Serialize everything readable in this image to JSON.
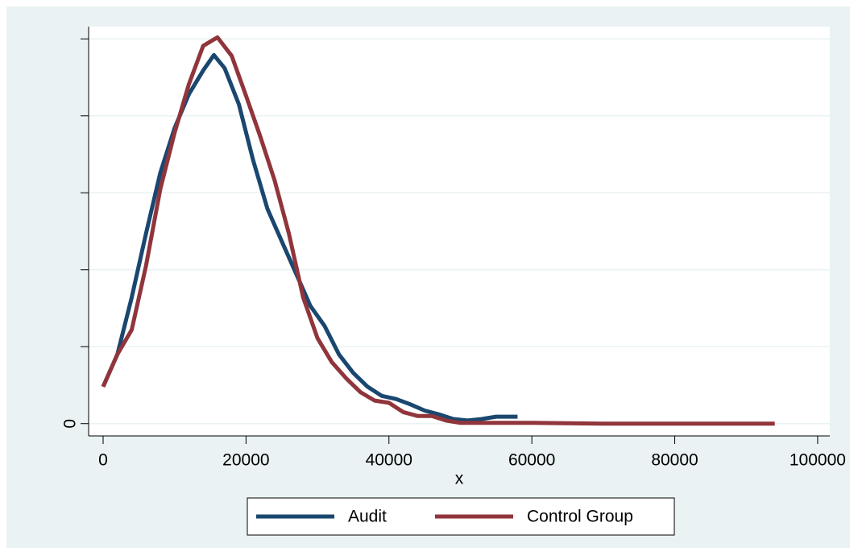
{
  "chart_data": {
    "type": "line",
    "xlabel": "x",
    "xlim": [
      -2030,
      101700
    ],
    "xticks": [
      0,
      20000,
      40000,
      60000,
      80000,
      100000
    ],
    "ylim": [
      -1.6e-06,
      5.16e-05
    ],
    "yticks": [
      0,
      {
        "value": 1e-05,
        "label": null
      },
      {
        "value": 2e-05,
        "label": null
      },
      {
        "value": 3e-05,
        "label": null
      },
      {
        "value": 4e-05,
        "label": null
      },
      {
        "value": 5e-05,
        "label": null
      }
    ],
    "grid": true,
    "legend": "bottom",
    "series": [
      {
        "name": "Audit",
        "color": "#1a476f",
        "x": [
          0,
          2000,
          4000,
          6000,
          8000,
          10000,
          12000,
          14000,
          15500,
          17000,
          19000,
          21000,
          23000,
          25000,
          27000,
          29000,
          31000,
          33000,
          35000,
          37000,
          39000,
          41000,
          43000,
          45000,
          47000,
          49000,
          51000,
          53000,
          55000,
          58000
        ],
        "values": [
          4.8e-06,
          9e-06,
          1.64e-05,
          2.47e-05,
          3.26e-05,
          3.84e-05,
          4.28e-05,
          4.59e-05,
          4.79e-05,
          4.62e-05,
          4.15e-05,
          3.42e-05,
          2.79e-05,
          2.37e-05,
          1.95e-05,
          1.53e-05,
          1.27e-05,
          9e-06,
          6.6e-06,
          4.8e-06,
          3.6e-06,
          3.2e-06,
          2.5e-06,
          1.7e-06,
          1.2e-06,
          6e-07,
          4e-07,
          6e-07,
          9e-07,
          9e-07
        ]
      },
      {
        "name": "Control Group",
        "color": "#90353b",
        "x": [
          0,
          2000,
          4000,
          6000,
          8000,
          10000,
          12000,
          14000,
          16000,
          18000,
          20000,
          22000,
          24000,
          26000,
          28000,
          30000,
          32000,
          34000,
          36000,
          38000,
          40000,
          42000,
          44000,
          46000,
          48000,
          50000,
          55000,
          60000,
          70000,
          80000,
          94000
        ],
        "values": [
          4.8e-06,
          9e-06,
          1.22e-05,
          2.05e-05,
          3.05e-05,
          3.78e-05,
          4.41e-05,
          4.91e-05,
          5.02e-05,
          4.78e-05,
          4.26e-05,
          3.73e-05,
          3.16e-05,
          2.47e-05,
          1.64e-05,
          1.11e-05,
          8e-06,
          5.9e-06,
          4.1e-06,
          3e-06,
          2.7e-06,
          1.5e-06,
          1e-06,
          1e-06,
          4e-07,
          1e-07,
          1e-07,
          1e-07,
          0,
          0,
          0
        ]
      }
    ]
  }
}
